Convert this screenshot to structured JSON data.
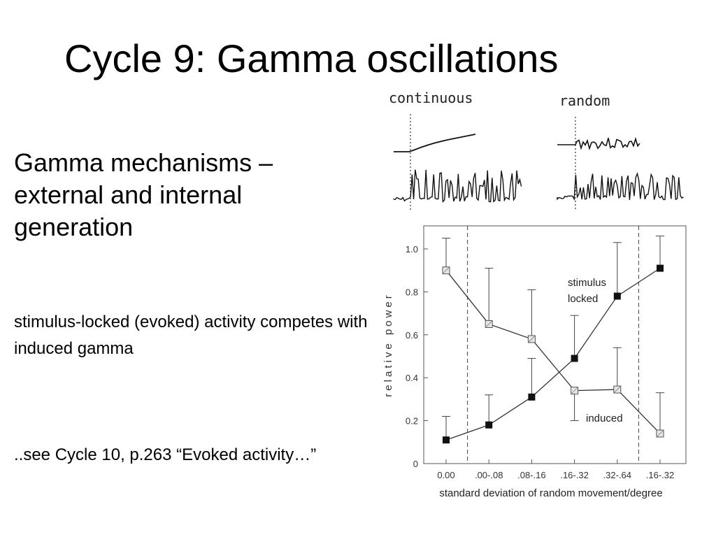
{
  "slide": {
    "title": "Cycle 9: Gamma oscillations",
    "heading": "Gamma mechanisms – external and internal generation",
    "text_1": "stimulus-locked (evoked) activity competes with induced gamma",
    "text_2": "..see Cycle 10, p.263 “Evoked activity…”"
  },
  "traces": {
    "label_continuous": "continuous",
    "label_random": "random"
  },
  "chart_data": {
    "type": "line",
    "xlabel": "standard deviation of random movement/degree",
    "ylabel": "relative power",
    "categories": [
      "0.00",
      ".00-.08",
      ".08-.16",
      ".16-.32",
      ".32-.64",
      ".16-.32"
    ],
    "ylim": [
      0,
      1.0
    ],
    "yticks": [
      0,
      0.2,
      0.4,
      0.6,
      0.8,
      1.0
    ],
    "ytick_labels": [
      "0",
      "0.2",
      "0.4",
      "0.6",
      "0.8",
      "1.0"
    ],
    "grid": false,
    "vertical_dashed_lines_between_categories": [
      [
        0,
        1
      ],
      [
        4,
        5
      ]
    ],
    "series": [
      {
        "name": "stimulus locked",
        "marker": "filled-square",
        "values": [
          0.11,
          0.18,
          0.31,
          0.49,
          0.78,
          0.91
        ],
        "error_upper": [
          0.22,
          0.32,
          0.49,
          0.69,
          1.03,
          1.06
        ]
      },
      {
        "name": "induced",
        "marker": "hatched-square",
        "values": [
          0.9,
          0.65,
          0.58,
          0.34,
          0.345,
          0.14
        ],
        "error_upper": [
          1.05,
          0.91,
          0.81,
          null,
          0.54,
          0.33
        ],
        "error_lower": [
          null,
          null,
          null,
          0.2,
          null,
          null
        ]
      }
    ],
    "annotations": [
      "stimulus locked",
      "induced"
    ]
  }
}
